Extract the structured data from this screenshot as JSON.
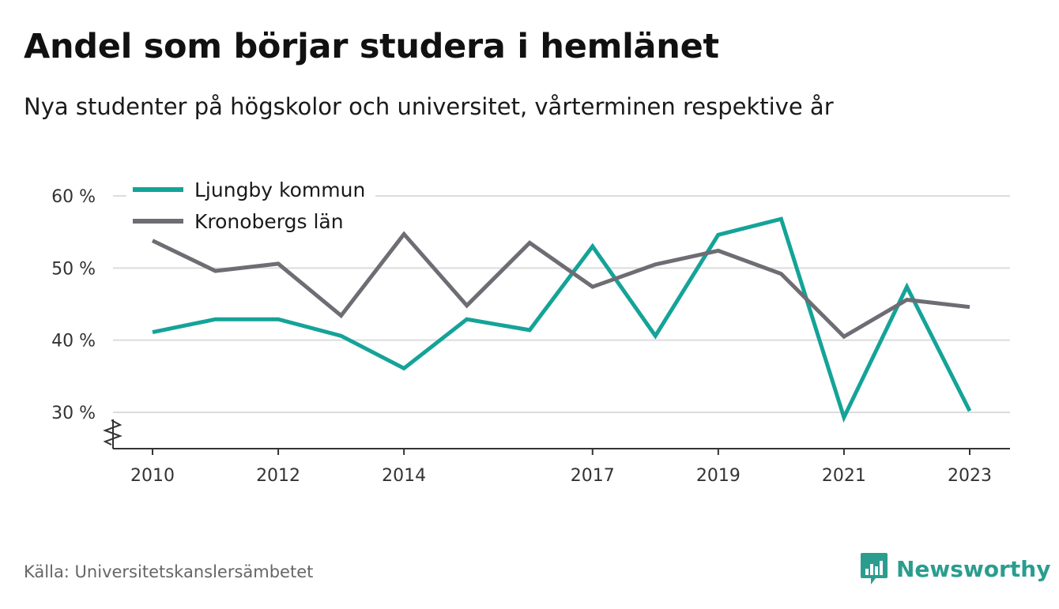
{
  "title": "Andel som börjar studera i hemlänet",
  "subtitle": "Nya studenter på högskolor och universitet, vårterminen respektive år",
  "source": "Källa: Universitetskanslersämbetet",
  "brand": {
    "name": "Newsworthy",
    "icon": "newsworthy-logo-icon",
    "color": "#2a9d8f"
  },
  "chart_data": {
    "type": "line",
    "x": [
      2010,
      2011,
      2012,
      2013,
      2014,
      2015,
      2016,
      2017,
      2018,
      2019,
      2020,
      2021,
      2022,
      2023
    ],
    "x_tick_labels": [
      "2010",
      "2012",
      "2014",
      "2017",
      "2019",
      "2021",
      "2023"
    ],
    "x_tick_values": [
      2010,
      2012,
      2014,
      2017,
      2019,
      2021,
      2023
    ],
    "y_tick_labels": [
      "30 %",
      "40 %",
      "50 %",
      "60 %"
    ],
    "y_tick_values": [
      30,
      40,
      50,
      60
    ],
    "ylim": [
      25,
      60
    ],
    "grid": true,
    "legend_position": "top-left",
    "axis_break": true,
    "series": [
      {
        "name": "Ljungby kommun",
        "color": "#15a398",
        "values": [
          41.1,
          42.9,
          42.9,
          40.6,
          36.1,
          42.9,
          41.4,
          53.0,
          40.6,
          54.6,
          56.8,
          29.3,
          47.4,
          30.2
        ]
      },
      {
        "name": "Kronobergs län",
        "color": "#6e6d74",
        "values": [
          53.8,
          49.6,
          50.6,
          43.4,
          54.7,
          44.8,
          53.5,
          47.4,
          50.5,
          52.4,
          49.2,
          40.5,
          45.6,
          44.6
        ]
      }
    ]
  }
}
